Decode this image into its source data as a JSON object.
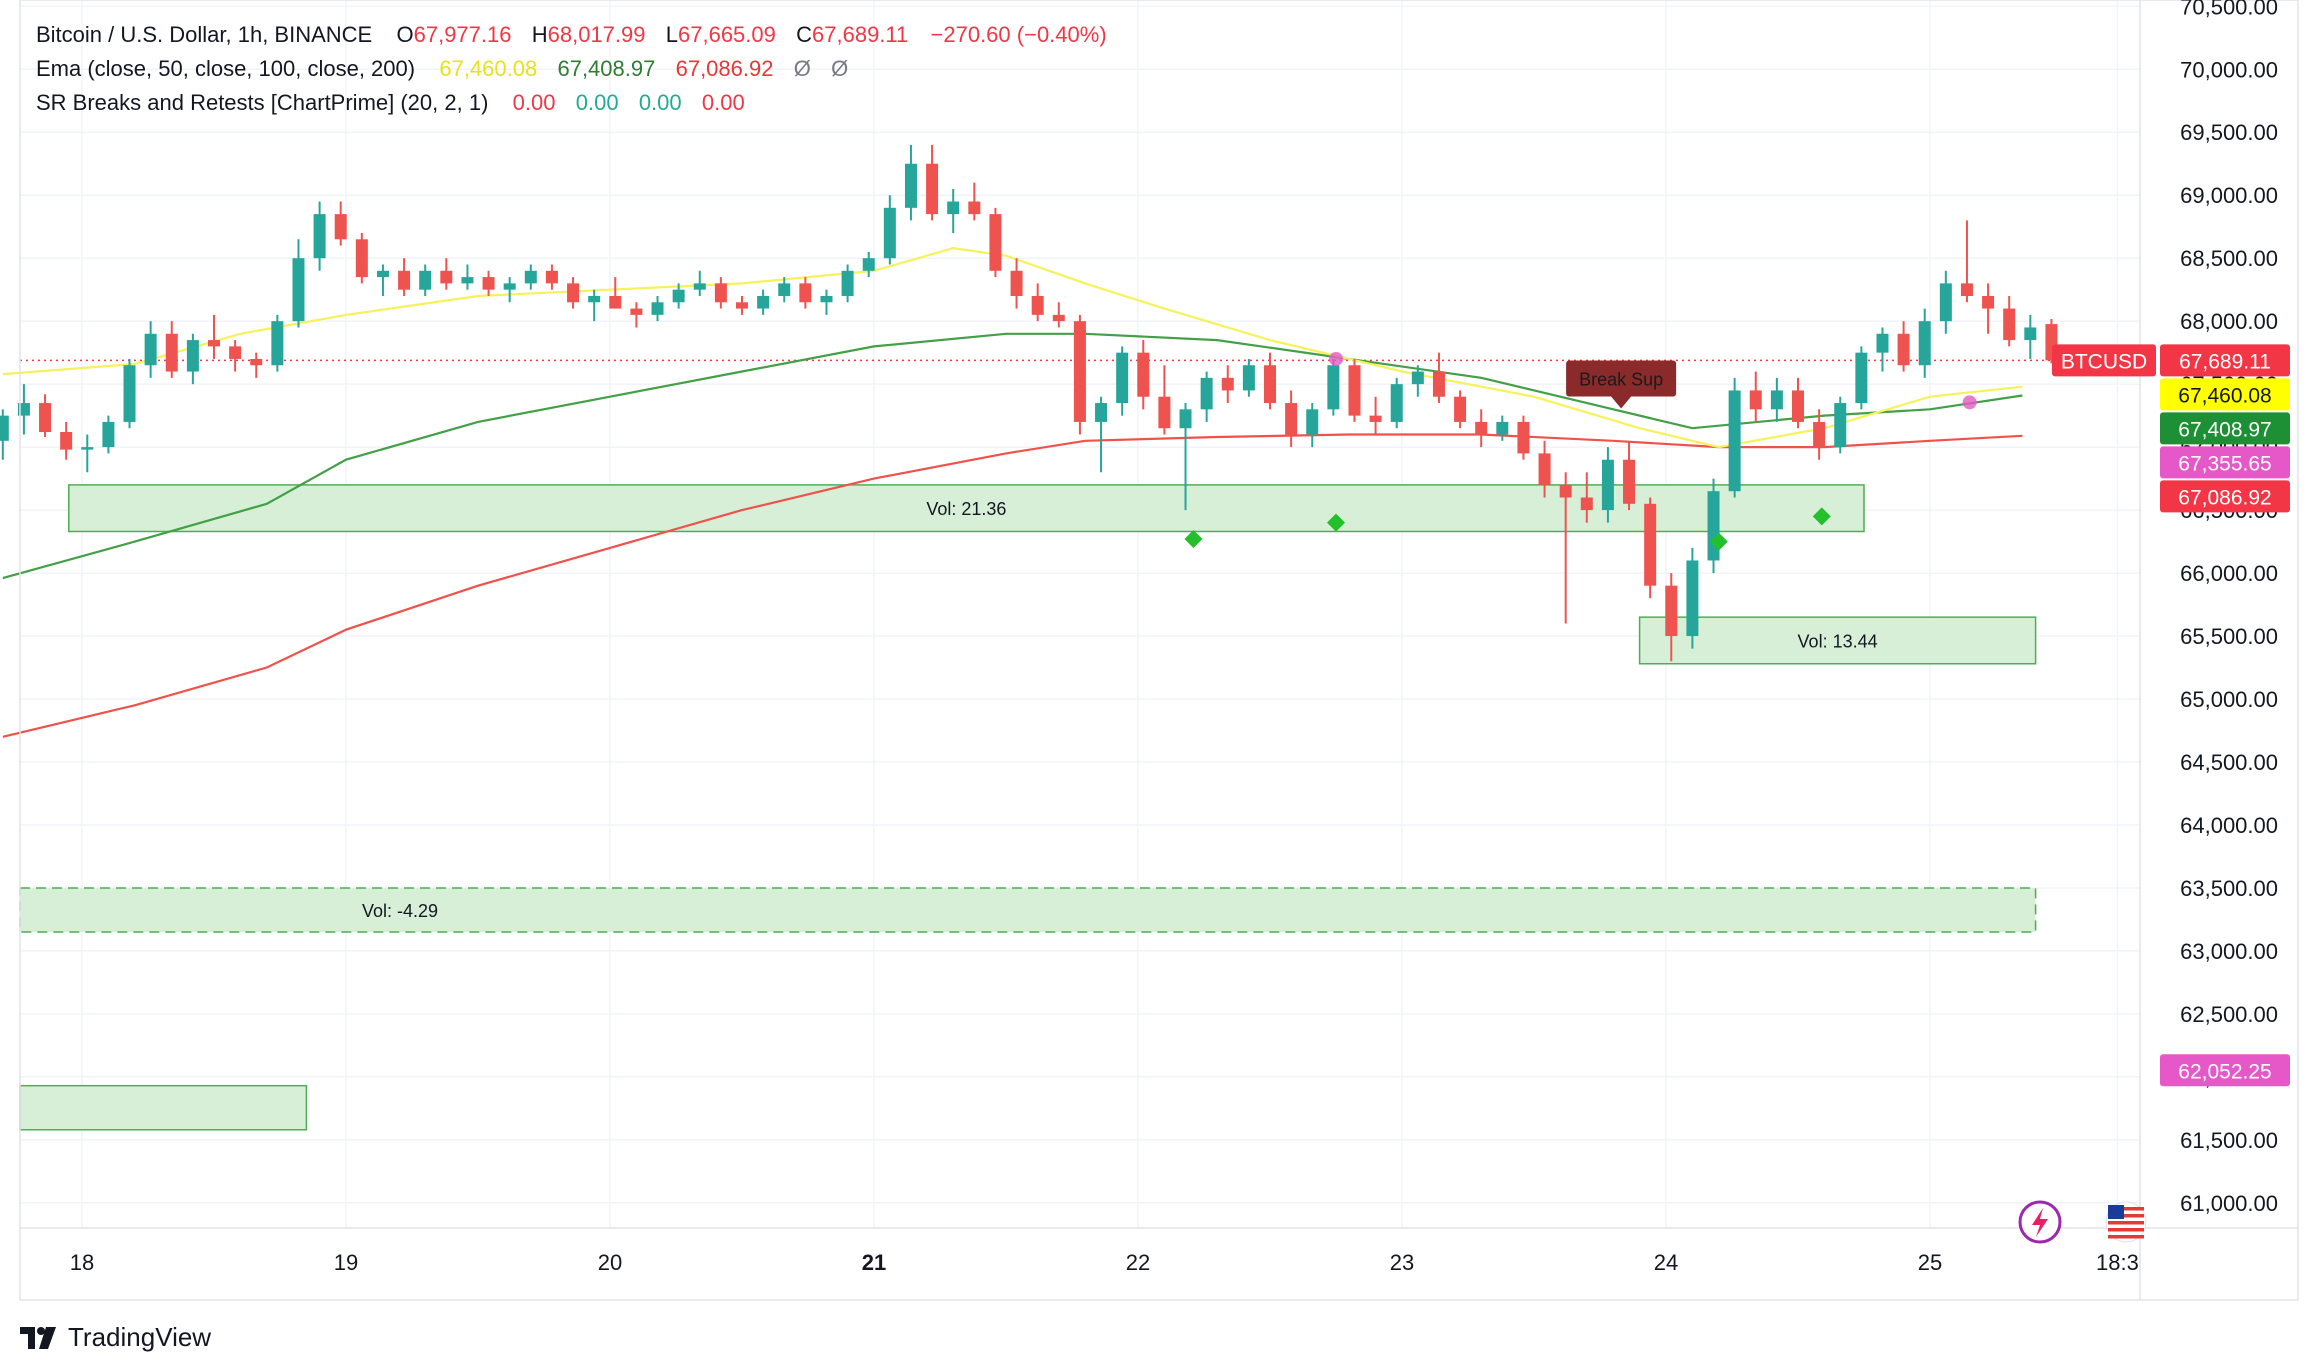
{
  "header": {
    "symbol_title": "Bitcoin / U.S. Dollar, 1h, BINANCE",
    "ohlc": [
      {
        "label": "O",
        "value": "67,977.16"
      },
      {
        "label": "H",
        "value": "68,017.99"
      },
      {
        "label": "L",
        "value": "67,665.09"
      },
      {
        "label": "C",
        "value": "67,689.11"
      }
    ],
    "change": "−270.60 (−0.40%)",
    "ema_label": "Ema (close, 50, close, 100, close, 200)",
    "ema_values": [
      "67,460.08",
      "67,408.97",
      "67,086.92",
      "Ø",
      "Ø"
    ],
    "sr_label": "SR Breaks and Retests [ChartPrime] (20, 2, 1)",
    "sr_values": [
      "0.00",
      "0.00",
      "0.00",
      "0.00"
    ]
  },
  "branding": {
    "name": "TradingView"
  },
  "colors": {
    "up": "#26a69a",
    "down": "#ef5350",
    "ema50": "#f5f25a",
    "ema100": "#43a047",
    "ema200": "#f0524b",
    "zone_fill": "#d7efd7",
    "zone_border": "#4caf50",
    "diamond": "#22c02a",
    "pink": "#e657c7",
    "label_red": "#f23645",
    "label_green": "#1d8f34",
    "label_yellow": "#ffff00",
    "break_label": "#8b2a2a"
  },
  "icons": [
    "lightning-icon",
    "us-flag-icon",
    "tradingview-logo-icon"
  ],
  "chart_data": {
    "type": "candlestick",
    "symbol": "BTCUSD",
    "interval": "1h",
    "x_ticks": [
      "18",
      "19",
      "20",
      "21",
      "22",
      "23",
      "24",
      "25",
      "18:3"
    ],
    "ylim": [
      60800,
      70550
    ],
    "y_ticks": [
      "61,000.00",
      "61,500.00",
      "62,000.00",
      "62,500.00",
      "63,000.00",
      "63,500.00",
      "64,000.00",
      "64,500.00",
      "65,000.00",
      "65,500.00",
      "66,000.00",
      "66,500.00",
      "67,000.00",
      "67,500.00",
      "68,000.00",
      "68,500.00",
      "69,000.00",
      "69,500.00",
      "70,000.00",
      "70,500.00"
    ],
    "price_labels": [
      {
        "text": "BTCUSD",
        "value": 67689.11,
        "kind": "symbol"
      },
      {
        "text": "67,689.11",
        "value": 67689.11,
        "kind": "last"
      },
      {
        "text": "67,460.08",
        "value": 67460.08,
        "kind": "ema50"
      },
      {
        "text": "67,408.97",
        "value": 67408.97,
        "kind": "ema100"
      },
      {
        "text": "67,355.65",
        "value": 67355.65,
        "kind": "pink"
      },
      {
        "text": "67,086.92",
        "value": 67086.92,
        "kind": "ema200"
      },
      {
        "text": "62,052.25",
        "value": 62052.25,
        "kind": "pink"
      }
    ],
    "last_price": 67689.11,
    "zones": [
      {
        "label": "Vol: 21.36",
        "day_start": 17.95,
        "day_end": 24.75,
        "top": 66700,
        "bottom": 66330,
        "dashed": false
      },
      {
        "label": "Vol: 13.44",
        "day_start": 23.9,
        "day_end": 25.4,
        "top": 65650,
        "bottom": 65280,
        "dashed": false
      },
      {
        "label": "Vol: -4.29",
        "day_start": 17.7,
        "day_end": 25.4,
        "top": 63500,
        "bottom": 63150,
        "dashed": true
      },
      {
        "label": "",
        "day_start": 17.7,
        "day_end": 18.85,
        "top": 61930,
        "bottom": 61580,
        "dashed": false
      }
    ],
    "break_label": {
      "text": "Break Sup",
      "day": 23.83,
      "price": 67100
    },
    "diamonds": [
      {
        "day": 22.21,
        "price": 66270
      },
      {
        "day": 22.75,
        "price": 66400
      },
      {
        "day": 24.2,
        "price": 66250
      },
      {
        "day": 24.59,
        "price": 66450
      }
    ],
    "pink_dots": [
      {
        "day": 22.75,
        "price": 67700
      },
      {
        "day": 25.15,
        "price": 67355.65
      }
    ],
    "ema50": [
      [
        17.7,
        67580
      ],
      [
        18.2,
        67660
      ],
      [
        18.6,
        67900
      ],
      [
        19.0,
        68050
      ],
      [
        19.5,
        68200
      ],
      [
        20.0,
        68250
      ],
      [
        20.5,
        68300
      ],
      [
        21.0,
        68400
      ],
      [
        21.3,
        68580
      ],
      [
        21.5,
        68520
      ],
      [
        21.8,
        68300
      ],
      [
        22.1,
        68100
      ],
      [
        22.5,
        67850
      ],
      [
        23.0,
        67600
      ],
      [
        23.5,
        67400
      ],
      [
        23.9,
        67150
      ],
      [
        24.2,
        67000
      ],
      [
        24.6,
        67150
      ],
      [
        25.0,
        67400
      ],
      [
        25.35,
        67480
      ]
    ],
    "ema100": [
      [
        17.7,
        65960
      ],
      [
        18.2,
        66250
      ],
      [
        18.7,
        66550
      ],
      [
        19.0,
        66900
      ],
      [
        19.5,
        67200
      ],
      [
        20.0,
        67400
      ],
      [
        20.5,
        67600
      ],
      [
        21.0,
        67800
      ],
      [
        21.5,
        67900
      ],
      [
        21.8,
        67900
      ],
      [
        22.3,
        67850
      ],
      [
        22.8,
        67700
      ],
      [
        23.3,
        67550
      ],
      [
        23.8,
        67300
      ],
      [
        24.1,
        67150
      ],
      [
        24.6,
        67250
      ],
      [
        25.0,
        67300
      ],
      [
        25.35,
        67410
      ]
    ],
    "ema200": [
      [
        17.7,
        64700
      ],
      [
        18.2,
        64950
      ],
      [
        18.7,
        65250
      ],
      [
        19.0,
        65550
      ],
      [
        19.5,
        65900
      ],
      [
        20.0,
        66200
      ],
      [
        20.5,
        66500
      ],
      [
        21.0,
        66750
      ],
      [
        21.5,
        66950
      ],
      [
        21.8,
        67050
      ],
      [
        22.3,
        67080
      ],
      [
        22.8,
        67100
      ],
      [
        23.3,
        67100
      ],
      [
        23.8,
        67050
      ],
      [
        24.2,
        67000
      ],
      [
        24.6,
        67000
      ],
      [
        25.0,
        67050
      ],
      [
        25.35,
        67090
      ]
    ],
    "candles": [
      [
        17.7,
        67050,
        67300,
        66900,
        67250
      ],
      [
        17.78,
        67250,
        67500,
        67100,
        67350
      ],
      [
        17.86,
        67350,
        67420,
        67080,
        67120
      ],
      [
        17.94,
        67120,
        67200,
        66900,
        66980
      ],
      [
        18.02,
        66980,
        67100,
        66800,
        67000
      ],
      [
        18.1,
        67000,
        67250,
        66950,
        67200
      ],
      [
        18.18,
        67200,
        67700,
        67150,
        67650
      ],
      [
        18.26,
        67650,
        68000,
        67550,
        67900
      ],
      [
        18.34,
        67900,
        68000,
        67550,
        67600
      ],
      [
        18.42,
        67600,
        67900,
        67500,
        67850
      ],
      [
        18.5,
        67850,
        68050,
        67700,
        67800
      ],
      [
        18.58,
        67800,
        67850,
        67600,
        67700
      ],
      [
        18.66,
        67700,
        67750,
        67550,
        67650
      ],
      [
        18.74,
        67650,
        68050,
        67600,
        68000
      ],
      [
        18.82,
        68000,
        68650,
        67950,
        68500
      ],
      [
        18.9,
        68500,
        68950,
        68400,
        68850
      ],
      [
        18.98,
        68850,
        68950,
        68600,
        68650
      ],
      [
        19.06,
        68650,
        68700,
        68300,
        68350
      ],
      [
        19.14,
        68350,
        68450,
        68200,
        68400
      ],
      [
        19.22,
        68400,
        68500,
        68200,
        68250
      ],
      [
        19.3,
        68250,
        68450,
        68200,
        68400
      ],
      [
        19.38,
        68400,
        68500,
        68250,
        68300
      ],
      [
        19.46,
        68300,
        68450,
        68250,
        68350
      ],
      [
        19.54,
        68350,
        68400,
        68200,
        68250
      ],
      [
        19.62,
        68250,
        68350,
        68150,
        68300
      ],
      [
        19.7,
        68300,
        68450,
        68250,
        68400
      ],
      [
        19.78,
        68400,
        68450,
        68250,
        68300
      ],
      [
        19.86,
        68300,
        68350,
        68100,
        68150
      ],
      [
        19.94,
        68150,
        68250,
        68000,
        68200
      ],
      [
        20.02,
        68200,
        68350,
        68100,
        68100
      ],
      [
        20.1,
        68100,
        68150,
        67950,
        68050
      ],
      [
        20.18,
        68050,
        68200,
        68000,
        68150
      ],
      [
        20.26,
        68150,
        68300,
        68100,
        68250
      ],
      [
        20.34,
        68250,
        68400,
        68200,
        68300
      ],
      [
        20.42,
        68300,
        68350,
        68100,
        68150
      ],
      [
        20.5,
        68150,
        68200,
        68050,
        68100
      ],
      [
        20.58,
        68100,
        68250,
        68050,
        68200
      ],
      [
        20.66,
        68200,
        68350,
        68150,
        68300
      ],
      [
        20.74,
        68300,
        68350,
        68100,
        68150
      ],
      [
        20.82,
        68150,
        68250,
        68050,
        68200
      ],
      [
        20.9,
        68200,
        68450,
        68150,
        68400
      ],
      [
        20.98,
        68400,
        68550,
        68350,
        68500
      ],
      [
        21.06,
        68500,
        69000,
        68450,
        68900
      ],
      [
        21.14,
        68900,
        69400,
        68800,
        69250
      ],
      [
        21.22,
        69250,
        69400,
        68800,
        68850
      ],
      [
        21.3,
        68850,
        69050,
        68700,
        68950
      ],
      [
        21.38,
        68950,
        69100,
        68800,
        68850
      ],
      [
        21.46,
        68850,
        68900,
        68350,
        68400
      ],
      [
        21.54,
        68400,
        68500,
        68100,
        68200
      ],
      [
        21.62,
        68200,
        68300,
        68000,
        68050
      ],
      [
        21.7,
        68050,
        68150,
        67950,
        68000
      ],
      [
        21.78,
        68000,
        68050,
        67100,
        67200
      ],
      [
        21.86,
        67200,
        67400,
        66800,
        67350
      ],
      [
        21.94,
        67350,
        67800,
        67250,
        67750
      ],
      [
        22.02,
        67750,
        67850,
        67300,
        67400
      ],
      [
        22.1,
        67400,
        67650,
        67100,
        67150
      ],
      [
        22.18,
        67150,
        67350,
        66500,
        67300
      ],
      [
        22.26,
        67300,
        67600,
        67200,
        67550
      ],
      [
        22.34,
        67550,
        67650,
        67350,
        67450
      ],
      [
        22.42,
        67450,
        67700,
        67400,
        67650
      ],
      [
        22.5,
        67650,
        67750,
        67300,
        67350
      ],
      [
        22.58,
        67350,
        67450,
        67000,
        67100
      ],
      [
        22.66,
        67100,
        67350,
        67000,
        67300
      ],
      [
        22.74,
        67300,
        67700,
        67250,
        67650
      ],
      [
        22.82,
        67650,
        67700,
        67200,
        67250
      ],
      [
        22.9,
        67250,
        67400,
        67100,
        67200
      ],
      [
        22.98,
        67200,
        67550,
        67150,
        67500
      ],
      [
        23.06,
        67500,
        67650,
        67400,
        67600
      ],
      [
        23.14,
        67600,
        67750,
        67350,
        67400
      ],
      [
        23.22,
        67400,
        67450,
        67150,
        67200
      ],
      [
        23.3,
        67200,
        67300,
        67000,
        67100
      ],
      [
        23.38,
        67100,
        67250,
        67050,
        67200
      ],
      [
        23.46,
        67200,
        67250,
        66900,
        66950
      ],
      [
        23.54,
        66950,
        67050,
        66600,
        66700
      ],
      [
        23.62,
        66700,
        66800,
        65600,
        66600
      ],
      [
        23.7,
        66600,
        66800,
        66400,
        66500
      ],
      [
        23.78,
        66500,
        67000,
        66400,
        66900
      ],
      [
        23.86,
        66900,
        67050,
        66500,
        66550
      ],
      [
        23.94,
        66550,
        66600,
        65800,
        65900
      ],
      [
        24.02,
        65900,
        66000,
        65300,
        65500
      ],
      [
        24.1,
        65500,
        66200,
        65400,
        66100
      ],
      [
        24.18,
        66100,
        66750,
        66000,
        66650
      ],
      [
        24.26,
        66650,
        67550,
        66600,
        67450
      ],
      [
        24.34,
        67450,
        67600,
        67200,
        67300
      ],
      [
        24.42,
        67300,
        67550,
        67200,
        67450
      ],
      [
        24.5,
        67450,
        67550,
        67150,
        67200
      ],
      [
        24.58,
        67200,
        67300,
        66900,
        67000
      ],
      [
        24.66,
        67000,
        67400,
        66950,
        67350
      ],
      [
        24.74,
        67350,
        67800,
        67300,
        67750
      ],
      [
        24.82,
        67750,
        67950,
        67600,
        67900
      ],
      [
        24.9,
        67900,
        68000,
        67600,
        67650
      ],
      [
        24.98,
        67650,
        68100,
        67550,
        68000
      ],
      [
        25.06,
        68000,
        68400,
        67900,
        68300
      ],
      [
        25.14,
        68300,
        68800,
        68150,
        68200
      ],
      [
        25.22,
        68200,
        68300,
        67900,
        68100
      ],
      [
        25.3,
        68100,
        68200,
        67800,
        67850
      ],
      [
        25.38,
        67850,
        68050,
        67700,
        67950
      ],
      [
        25.46,
        67977,
        68018,
        67665,
        67689
      ]
    ]
  }
}
